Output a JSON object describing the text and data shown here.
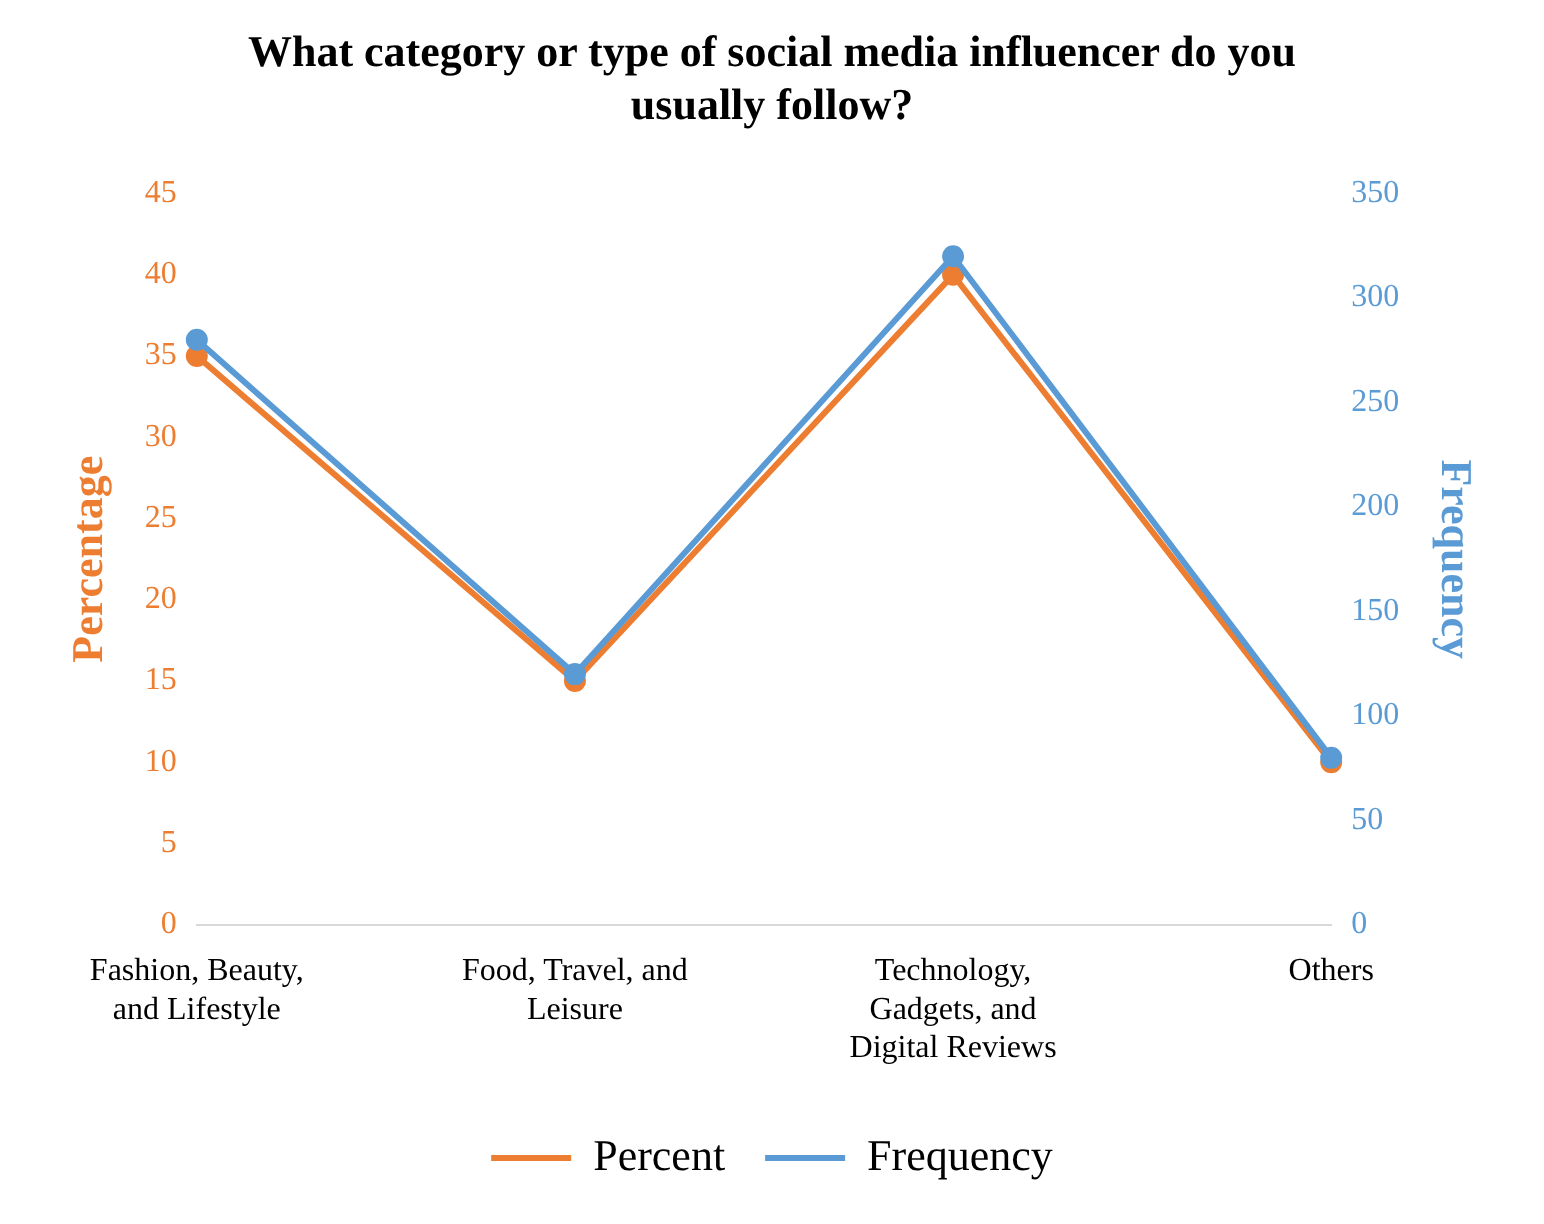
{
  "chart_data": {
    "type": "line",
    "title": "What category or type of social media influencer do you usually follow?",
    "categories": [
      "Fashion, Beauty, and Lifestyle",
      "Food, Travel, and Leisure",
      "Technology, Gadgets, and Digital Reviews",
      "Others"
    ],
    "series": [
      {
        "name": "Percent",
        "color": "#ed7d31",
        "values": [
          35,
          15,
          40,
          10
        ]
      },
      {
        "name": "Frequency",
        "color": "#5b9bd5",
        "values": [
          280,
          120,
          320,
          80
        ],
        "axis": "y2"
      }
    ],
    "ylabel": "Percentage",
    "y2label": "Frequency",
    "ylim": [
      0,
      45
    ],
    "yticks": [
      0,
      5,
      10,
      15,
      20,
      25,
      30,
      35,
      40,
      45
    ],
    "y2lim": [
      0,
      350
    ],
    "y2ticks": [
      0,
      50,
      100,
      150,
      200,
      250,
      300,
      350
    ],
    "grid": false,
    "legend": "bottom",
    "marker": "circle",
    "line_style": "solid"
  }
}
